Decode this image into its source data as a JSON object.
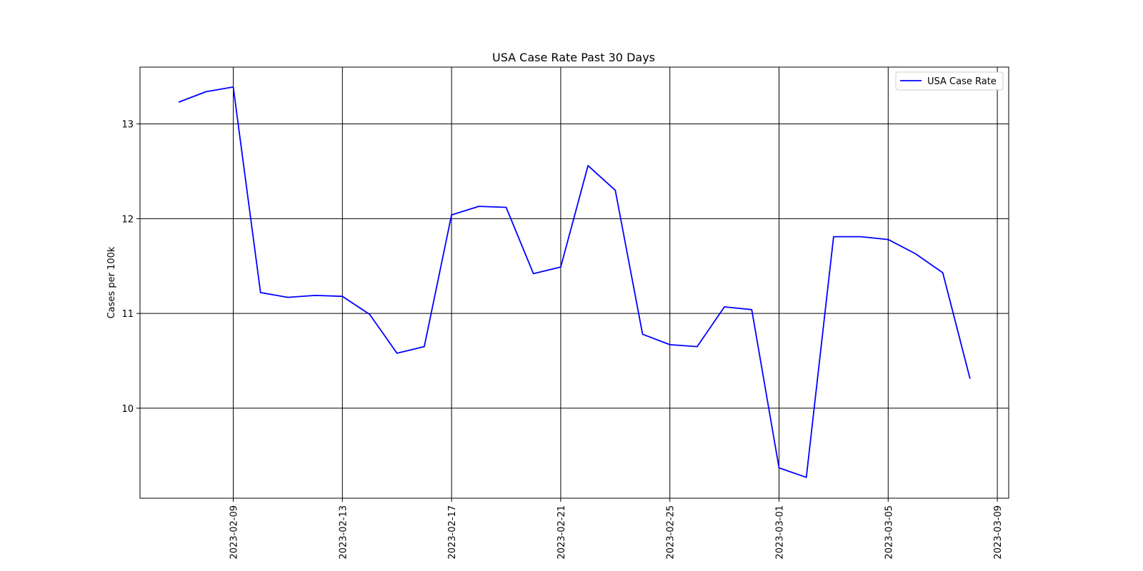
{
  "chart_data": {
    "type": "line",
    "title": "USA Case Rate Past 30 Days",
    "xlabel": "",
    "ylabel": "Cases per 100k",
    "grid": true,
    "legend_position": "top-right",
    "xlim": [
      "2023-02-05T14:00",
      "2023-03-09T10:00"
    ],
    "ylim": [
      9.05,
      13.6
    ],
    "x_ticks": [
      "2023-02-09",
      "2023-02-13",
      "2023-02-17",
      "2023-02-21",
      "2023-02-25",
      "2023-03-01",
      "2023-03-05",
      "2023-03-09"
    ],
    "y_ticks": [
      10,
      11,
      12,
      13
    ],
    "series": [
      {
        "name": "USA Case Rate",
        "color": "#0000ff",
        "x": [
          "2023-02-07",
          "2023-02-08",
          "2023-02-09",
          "2023-02-10",
          "2023-02-11",
          "2023-02-12",
          "2023-02-13",
          "2023-02-14",
          "2023-02-15",
          "2023-02-16",
          "2023-02-17",
          "2023-02-18",
          "2023-02-19",
          "2023-02-20",
          "2023-02-21",
          "2023-02-22",
          "2023-02-23",
          "2023-02-24",
          "2023-02-25",
          "2023-02-26",
          "2023-02-27",
          "2023-02-28",
          "2023-03-01",
          "2023-03-02",
          "2023-03-03",
          "2023-03-04",
          "2023-03-05",
          "2023-03-06",
          "2023-03-07",
          "2023-03-08"
        ],
        "values": [
          13.23,
          13.34,
          13.39,
          11.22,
          11.17,
          11.19,
          11.18,
          10.99,
          10.58,
          10.65,
          12.04,
          12.13,
          12.12,
          11.42,
          11.49,
          12.56,
          12.3,
          10.78,
          10.67,
          10.65,
          11.07,
          11.04,
          9.37,
          9.27,
          11.81,
          11.81,
          11.78,
          11.63,
          11.43,
          10.31
        ]
      }
    ]
  }
}
